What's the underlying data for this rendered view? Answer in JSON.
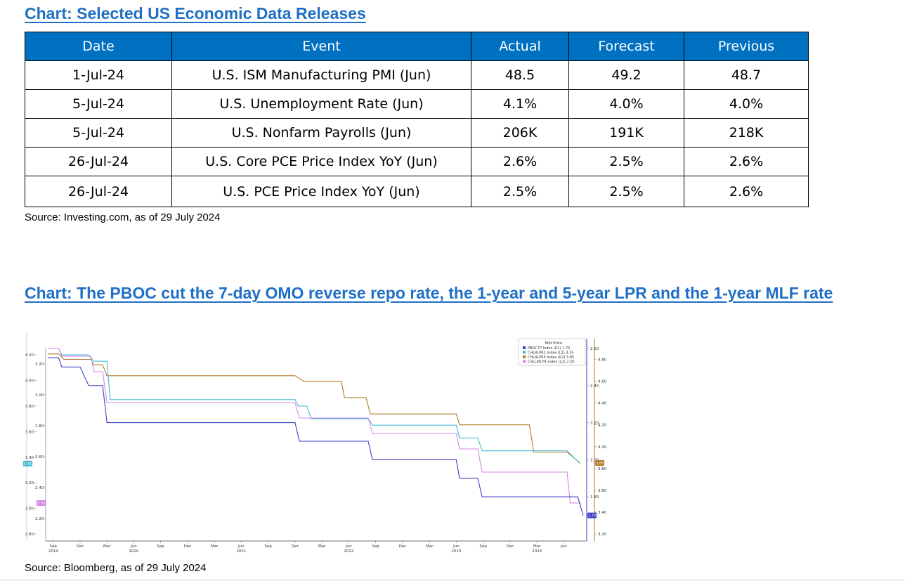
{
  "section1": {
    "title": "Chart: Selected US Economic Data Releases",
    "columns": [
      "Date",
      "Event",
      "Actual",
      "Forecast",
      "Previous"
    ],
    "rows": [
      {
        "date": "1-Jul-24",
        "event": "U.S. ISM Manufacturing PMI (Jun)",
        "actual": "48.5",
        "forecast": "49.2",
        "previous": "48.7"
      },
      {
        "date": "5-Jul-24",
        "event": "U.S. Unemployment Rate (Jun)",
        "actual": "4.1%",
        "forecast": "4.0%",
        "previous": "4.0%"
      },
      {
        "date": "5-Jul-24",
        "event": "U.S. Nonfarm Payrolls (Jun)",
        "actual": "206K",
        "forecast": "191K",
        "previous": "218K"
      },
      {
        "date": "26-Jul-24",
        "event": "U.S. Core PCE Price Index YoY (Jun)",
        "actual": "2.6%",
        "forecast": "2.5%",
        "previous": "2.6%"
      },
      {
        "date": "26-Jul-24",
        "event": "U.S. PCE Price Index YoY (Jun)",
        "actual": "2.5%",
        "forecast": "2.5%",
        "previous": "2.6%"
      }
    ],
    "source": "Source: Investing.com, as of 29 July 2024"
  },
  "section2": {
    "title": "Chart: The PBOC cut the 7-day OMO reverse repo rate, the 1-year and 5-year LPR and the 1-year MLF rate",
    "source": "Source: Bloomberg, as of 29 July 2024"
  },
  "chart_data": {
    "type": "line",
    "legend": {
      "title": "Mid Price",
      "entries": [
        "PBOC7P Index (R1) 1.70",
        "CHLRLPR1 Index (L1) 3.35",
        "CHLRLPR5 Index (R2) 3.85",
        "CHLLM1YR Index (L2) 2.30"
      ],
      "placement": "top-right"
    },
    "axes": {
      "L1": {
        "ticks": [
          "4.20",
          "4.00",
          "3.80",
          "3.60",
          "3.40",
          "3.20",
          "3.00",
          "2.80"
        ],
        "range": [
          2.8,
          4.25
        ]
      },
      "L2": {
        "ticks": [
          "3.20",
          "3.00",
          "2.80",
          "2.60",
          "2.40",
          "2.20"
        ],
        "range": [
          2.1,
          3.3
        ]
      },
      "R1": {
        "ticks": [
          "2.60",
          "2.40",
          "2.20",
          "2.00",
          "1.80"
        ],
        "range": [
          1.6,
          2.6
        ]
      },
      "R2": {
        "ticks": [
          "4.80",
          "4.60",
          "4.40",
          "4.20",
          "4.00",
          "3.80",
          "3.60",
          "3.40",
          "3.20"
        ],
        "range": [
          3.2,
          4.9
        ]
      }
    },
    "x_ticks": [
      {
        "label": "Sep",
        "year": "2019",
        "t": 2019.67
      },
      {
        "label": "Dec",
        "t": 2019.92
      },
      {
        "label": "Mar",
        "t": 2020.17
      },
      {
        "label": "Jun",
        "year": "2020",
        "t": 2020.42
      },
      {
        "label": "Sep",
        "t": 2020.67
      },
      {
        "label": "Dec",
        "t": 2020.92
      },
      {
        "label": "Mar",
        "t": 2021.17
      },
      {
        "label": "Jun",
        "year": "2021",
        "t": 2021.42
      },
      {
        "label": "Sep",
        "t": 2021.67
      },
      {
        "label": "Dec",
        "t": 2021.92
      },
      {
        "label": "Mar",
        "t": 2022.17
      },
      {
        "label": "Jun",
        "year": "2022",
        "t": 2022.42
      },
      {
        "label": "Sep",
        "t": 2022.67
      },
      {
        "label": "Dec",
        "t": 2022.92
      },
      {
        "label": "Mar",
        "t": 2023.17
      },
      {
        "label": "Jun",
        "year": "2023",
        "t": 2023.42
      },
      {
        "label": "Sep",
        "t": 2023.67
      },
      {
        "label": "Dec",
        "t": 2023.92
      },
      {
        "label": "Mar",
        "year": "2024",
        "t": 2024.17
      },
      {
        "label": "Jun",
        "t": 2024.42
      }
    ],
    "x_range": [
      2019.6,
      2024.62
    ],
    "series": [
      {
        "name": "CHLRLPR5 Index (R2)",
        "axis": "R2",
        "color": "#b07a28",
        "last_label": "3.85",
        "points": [
          [
            2019.62,
            4.85
          ],
          [
            2019.72,
            4.85
          ],
          [
            2019.77,
            4.8
          ],
          [
            2020.02,
            4.8
          ],
          [
            2020.05,
            4.75
          ],
          [
            2020.13,
            4.75
          ],
          [
            2020.17,
            4.65
          ],
          [
            2021.92,
            4.65
          ],
          [
            2022.0,
            4.6
          ],
          [
            2022.35,
            4.6
          ],
          [
            2022.38,
            4.45
          ],
          [
            2022.58,
            4.45
          ],
          [
            2022.62,
            4.3
          ],
          [
            2023.42,
            4.3
          ],
          [
            2023.45,
            4.2
          ],
          [
            2024.1,
            4.2
          ],
          [
            2024.14,
            3.95
          ],
          [
            2024.45,
            3.95
          ],
          [
            2024.57,
            3.85
          ]
        ]
      },
      {
        "name": "CHLRLPR1 Index (L1)",
        "axis": "L1",
        "color": "#45b8d0",
        "last_label": "3.35",
        "points": [
          [
            2019.62,
            4.25
          ],
          [
            2019.72,
            4.25
          ],
          [
            2019.75,
            4.2
          ],
          [
            2020.0,
            4.2
          ],
          [
            2020.05,
            4.15
          ],
          [
            2020.17,
            4.15
          ],
          [
            2020.2,
            3.85
          ],
          [
            2021.92,
            3.85
          ],
          [
            2021.95,
            3.8
          ],
          [
            2022.03,
            3.8
          ],
          [
            2022.07,
            3.7
          ],
          [
            2022.6,
            3.7
          ],
          [
            2022.64,
            3.65
          ],
          [
            2023.42,
            3.65
          ],
          [
            2023.45,
            3.55
          ],
          [
            2023.62,
            3.55
          ],
          [
            2023.66,
            3.45
          ],
          [
            2024.45,
            3.45
          ],
          [
            2024.57,
            3.35
          ]
        ]
      },
      {
        "name": "CHLLM1YR Index (L2)",
        "axis": "L2",
        "color": "#d486e4",
        "last_label": "2.30",
        "points": [
          [
            2019.62,
            3.3
          ],
          [
            2019.72,
            3.3
          ],
          [
            2019.75,
            3.25
          ],
          [
            2020.02,
            3.25
          ],
          [
            2020.05,
            3.15
          ],
          [
            2020.13,
            3.15
          ],
          [
            2020.17,
            2.95
          ],
          [
            2021.92,
            2.95
          ],
          [
            2021.96,
            2.85
          ],
          [
            2022.0,
            2.85
          ],
          [
            2022.04,
            2.85
          ],
          [
            2022.6,
            2.85
          ],
          [
            2022.64,
            2.75
          ],
          [
            2023.42,
            2.75
          ],
          [
            2023.45,
            2.65
          ],
          [
            2023.62,
            2.65
          ],
          [
            2023.66,
            2.5
          ],
          [
            2024.45,
            2.5
          ],
          [
            2024.48,
            2.3
          ],
          [
            2024.58,
            2.3
          ]
        ]
      },
      {
        "name": "PBOC7P Index (R1)",
        "axis": "R1",
        "color": "#3b3fc4",
        "last_label": "1.70",
        "points": [
          [
            2019.62,
            2.55
          ],
          [
            2019.72,
            2.55
          ],
          [
            2019.75,
            2.5
          ],
          [
            2019.92,
            2.5
          ],
          [
            2020.0,
            2.4
          ],
          [
            2020.13,
            2.4
          ],
          [
            2020.17,
            2.2
          ],
          [
            2021.92,
            2.2
          ],
          [
            2021.96,
            2.1
          ],
          [
            2022.6,
            2.1
          ],
          [
            2022.64,
            2.0
          ],
          [
            2023.42,
            2.0
          ],
          [
            2023.45,
            1.9
          ],
          [
            2023.62,
            1.9
          ],
          [
            2023.66,
            1.8
          ],
          [
            2024.55,
            1.8
          ],
          [
            2024.6,
            1.7
          ]
        ]
      }
    ]
  }
}
